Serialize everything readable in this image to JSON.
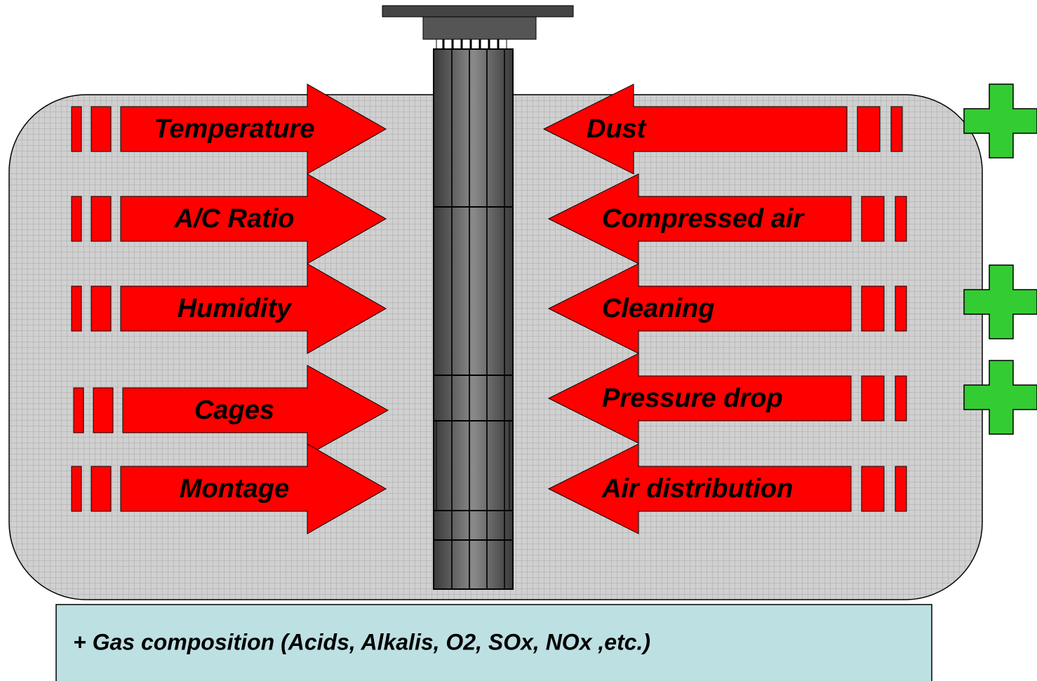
{
  "diagram": {
    "left_factors": [
      {
        "label": "Temperature"
      },
      {
        "label": "A/C Ratio"
      },
      {
        "label": "Humidity"
      },
      {
        "label": "Cages"
      },
      {
        "label": "Montage"
      }
    ],
    "right_factors": [
      {
        "label": "Dust"
      },
      {
        "label": "Compressed air"
      },
      {
        "label": "Cleaning"
      },
      {
        "label": "Pressure drop"
      },
      {
        "label": "Air distribution"
      }
    ],
    "footer": "+ Gas composition (Acids, Alkalis, O2, SOx, NOx ,etc.)"
  }
}
